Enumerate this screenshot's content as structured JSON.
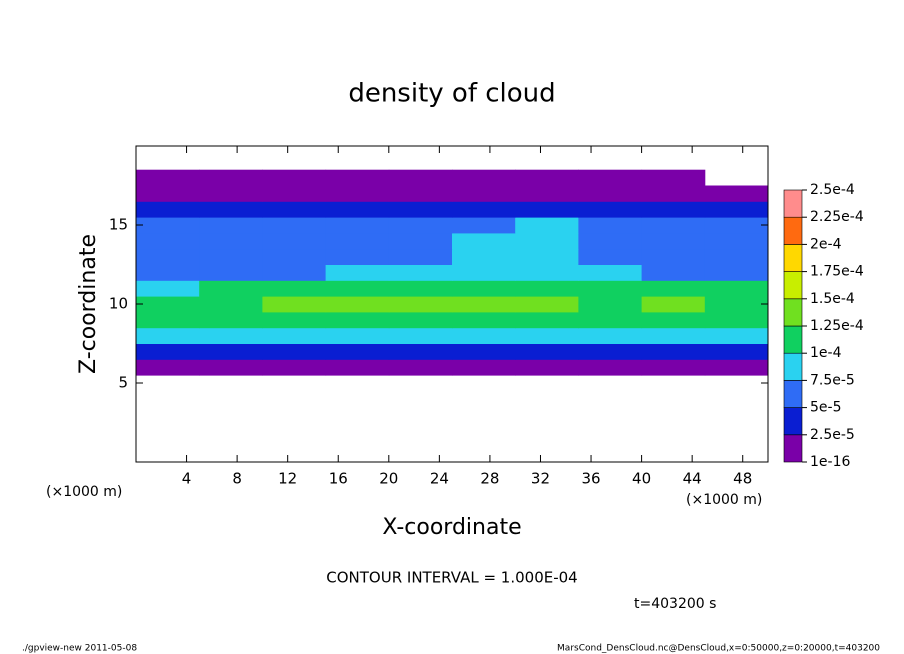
{
  "chart_data": {
    "type": "heatmap",
    "title": "density of cloud",
    "x_label": "X-coordinate",
    "y_label": "Z-coordinate",
    "x_unit": "(×1000 m)",
    "y_unit": "(×1000 m)",
    "contour_note": "CONTOUR INTERVAL = 1.000E-04",
    "time_note": "t=403200 s",
    "footer_left": "./gpview-new  2011-05-08",
    "footer_right": "MarsCond_DensCloud.nc@DensCloud,x=0:50000,z=0:20000,t=403200",
    "xlim": [
      0,
      50
    ],
    "ylim": [
      0,
      20
    ],
    "xticks": [
      4,
      8,
      12,
      16,
      20,
      24,
      28,
      32,
      36,
      40,
      44,
      48
    ],
    "yticks": [
      5,
      10,
      15
    ],
    "x": [
      2.5,
      7.5,
      12.5,
      17.5,
      22.5,
      27.5,
      32.5,
      37.5,
      42.5,
      47.5
    ],
    "z": [
      6,
      7,
      8,
      9,
      10,
      11,
      12,
      13,
      14,
      15,
      16,
      17,
      18
    ],
    "values": [
      [
        1e-05,
        1e-05,
        1e-05,
        1e-05,
        1e-05,
        1e-05,
        1e-05,
        1e-05,
        1e-05,
        1e-05
      ],
      [
        4e-05,
        4.5e-05,
        4e-05,
        4.5e-05,
        4e-05,
        4.5e-05,
        4e-05,
        4.5e-05,
        4e-05,
        4.5e-05
      ],
      [
        8e-05,
        8.5e-05,
        8e-05,
        9e-05,
        8.5e-05,
        8e-05,
        8.5e-05,
        8e-05,
        8.5e-05,
        8e-05
      ],
      [
        0.00011,
        0.000115,
        0.00012,
        0.000115,
        0.00012,
        0.00011,
        0.000105,
        0.00011,
        0.000115,
        0.00011
      ],
      [
        0.000115,
        0.00012,
        0.000125,
        0.00013,
        0.000128,
        0.00013,
        0.000125,
        0.00012,
        0.000128,
        0.00012
      ],
      [
        9e-05,
        0.000102,
        0.000105,
        0.00011,
        0.000105,
        0.000108,
        0.000105,
        0.000102,
        0.000105,
        0.0001
      ],
      [
        6.5e-05,
        6e-05,
        7e-05,
        7.5e-05,
        8e-05,
        8.5e-05,
        8e-05,
        7.5e-05,
        7e-05,
        7e-05
      ],
      [
        6e-05,
        5.5e-05,
        6e-05,
        6.5e-05,
        7e-05,
        7.8e-05,
        8e-05,
        7e-05,
        6.5e-05,
        6e-05
      ],
      [
        5.5e-05,
        5.5e-05,
        5.5e-05,
        6e-05,
        6.5e-05,
        7.6e-05,
        7.8e-05,
        6.8e-05,
        6e-05,
        5.8e-05
      ],
      [
        5.5e-05,
        5.5e-05,
        5.2e-05,
        5.5e-05,
        6e-05,
        7e-05,
        7.6e-05,
        6.5e-05,
        6e-05,
        5.8e-05
      ],
      [
        3e-05,
        3e-05,
        3e-05,
        3e-05,
        3e-05,
        3e-05,
        3e-05,
        3e-05,
        3e-05,
        3e-05
      ],
      [
        1e-05,
        1e-05,
        1e-05,
        1e-05,
        1e-05,
        1e-05,
        1e-05,
        1e-05,
        1e-05,
        1e-05
      ],
      [
        1e-06,
        1e-06,
        1e-06,
        1e-06,
        1e-06,
        1e-06,
        1e-06,
        1e-06,
        1e-06,
        0
      ]
    ],
    "levels": [
      {
        "value": 1e-16,
        "label": "1e-16"
      },
      {
        "value": 2.5e-05,
        "label": "2.5e-5"
      },
      {
        "value": 5e-05,
        "label": "5e-5"
      },
      {
        "value": 7.5e-05,
        "label": "7.5e-5"
      },
      {
        "value": 0.0001,
        "label": "1e-4"
      },
      {
        "value": 0.000125,
        "label": "1.25e-4"
      },
      {
        "value": 0.00015,
        "label": "1.5e-4"
      },
      {
        "value": 0.000175,
        "label": "1.75e-4"
      },
      {
        "value": 0.0002,
        "label": "2e-4"
      },
      {
        "value": 0.000225,
        "label": "2.25e-4"
      },
      {
        "value": 0.00025,
        "label": "2.5e-4"
      }
    ],
    "colors": [
      "#7a00a8",
      "#0a1ed2",
      "#2f6cf5",
      "#2ad2f0",
      "#10d060",
      "#70e020",
      "#c8ee00",
      "#ffd800",
      "#ff6a10",
      "#ff8c8c"
    ]
  }
}
